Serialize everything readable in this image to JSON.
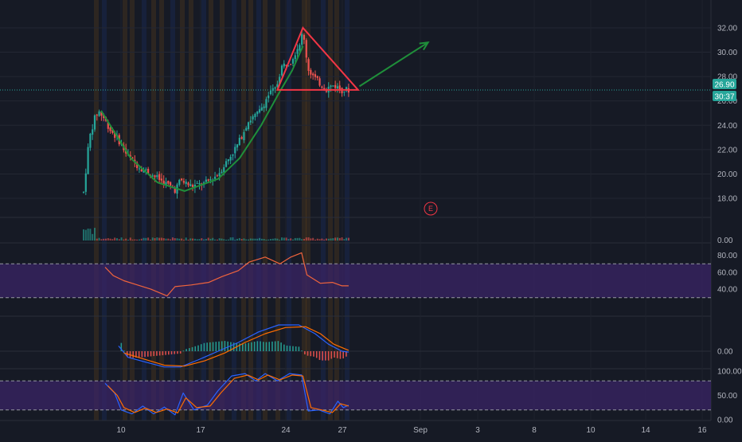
{
  "colors": {
    "background": "#161a25",
    "grid": "#232733",
    "axis_text": "#b2b5be",
    "up": "#26a69a",
    "down": "#ef5350",
    "price_line": "#26a69a",
    "band": "#3a2466",
    "rsi": "#f0643c",
    "macd": "#2962ff",
    "signal": "#ff6d00",
    "stoch_k": "#2962ff",
    "stoch_d": "#ff6d00",
    "cup": "#1f8f3a",
    "triangle": "#f23645",
    "arrow": "#1f8f3a",
    "earnings": "#f23645"
  },
  "price_axis": {
    "labels": [
      "32.00",
      "30.00",
      "28.00",
      "26.00",
      "24.00",
      "22.00",
      "20.00",
      "18.00"
    ]
  },
  "volume_axis": {
    "labels": [
      "0.00"
    ]
  },
  "rsi_axis": {
    "labels": [
      "80.00",
      "60.00",
      "40.00"
    ]
  },
  "macd_axis": {
    "labels": [
      "0.00"
    ]
  },
  "stoch_axis": {
    "labels": [
      "100.00",
      "50.00",
      "0.00"
    ]
  },
  "time_axis": {
    "labels": [
      "10",
      "17",
      "24",
      "27",
      "Sep",
      "3",
      "8",
      "10",
      "14",
      "16"
    ]
  },
  "last_price": {
    "value": "26.90",
    "countdown": "30:37"
  },
  "earnings_marker": {
    "text": "E"
  },
  "chart_data": {
    "type": "candlestick",
    "price_ylim": [
      16.5,
      33.5
    ],
    "last_price": 26.9,
    "path": [
      {
        "d": 0,
        "p": 18.5
      },
      {
        "d": 0.4,
        "p": 22.8
      },
      {
        "d": 0.8,
        "p": 24.5
      },
      {
        "d": 1.1,
        "p": 25.2
      },
      {
        "d": 1.5,
        "p": 24.6
      },
      {
        "d": 2,
        "p": 23.6
      },
      {
        "d": 2.6,
        "p": 22.8
      },
      {
        "d": 3.2,
        "p": 21.6
      },
      {
        "d": 4,
        "p": 20.7
      },
      {
        "d": 5,
        "p": 20.0
      },
      {
        "d": 6,
        "p": 19.3
      },
      {
        "d": 6.8,
        "p": 18.7
      },
      {
        "d": 7.2,
        "p": 19.5
      },
      {
        "d": 8,
        "p": 19.0
      },
      {
        "d": 9,
        "p": 19.2
      },
      {
        "d": 10,
        "p": 20.0
      },
      {
        "d": 10.8,
        "p": 21.3
      },
      {
        "d": 11.5,
        "p": 22.5
      },
      {
        "d": 12.2,
        "p": 24.3
      },
      {
        "d": 13,
        "p": 25.0
      },
      {
        "d": 13.8,
        "p": 26.6
      },
      {
        "d": 14.3,
        "p": 27.0
      },
      {
        "d": 14.7,
        "p": 28.8
      },
      {
        "d": 15.4,
        "p": 29.3
      },
      {
        "d": 16,
        "p": 30.6
      },
      {
        "d": 16.3,
        "p": 31.6
      },
      {
        "d": 16.7,
        "p": 28.6
      },
      {
        "d": 17.3,
        "p": 27.7
      },
      {
        "d": 18,
        "p": 27.0
      },
      {
        "d": 18.6,
        "p": 27.3
      },
      {
        "d": 19.2,
        "p": 26.9
      },
      {
        "d": 19.7,
        "p": 26.9
      }
    ],
    "rsi_path": [
      {
        "d": 1.6,
        "p": 66
      },
      {
        "d": 2.2,
        "p": 56
      },
      {
        "d": 3,
        "p": 50
      },
      {
        "d": 4,
        "p": 45
      },
      {
        "d": 5,
        "p": 40
      },
      {
        "d": 6.2,
        "p": 32
      },
      {
        "d": 6.8,
        "p": 43
      },
      {
        "d": 8,
        "p": 45
      },
      {
        "d": 9.3,
        "p": 48
      },
      {
        "d": 10.3,
        "p": 55
      },
      {
        "d": 11.5,
        "p": 62
      },
      {
        "d": 12.3,
        "p": 72
      },
      {
        "d": 13.5,
        "p": 78
      },
      {
        "d": 14.6,
        "p": 70
      },
      {
        "d": 15.4,
        "p": 78
      },
      {
        "d": 16.2,
        "p": 83
      },
      {
        "d": 16.6,
        "p": 57
      },
      {
        "d": 17.6,
        "p": 47
      },
      {
        "d": 18.5,
        "p": 48
      },
      {
        "d": 19.2,
        "p": 44
      },
      {
        "d": 19.7,
        "p": 44
      }
    ],
    "rsi_bands": [
      30,
      70
    ],
    "macd_path": [
      {
        "d": 2.6,
        "p": 0.3
      },
      {
        "d": 3.3,
        "p": -0.35
      },
      {
        "d": 4.5,
        "p": -0.6
      },
      {
        "d": 6,
        "p": -0.9
      },
      {
        "d": 7.2,
        "p": -0.9
      },
      {
        "d": 8.5,
        "p": -0.5
      },
      {
        "d": 10,
        "p": 0.0
      },
      {
        "d": 11.5,
        "p": 0.5
      },
      {
        "d": 13,
        "p": 1.1
      },
      {
        "d": 14.5,
        "p": 1.5
      },
      {
        "d": 16,
        "p": 1.5
      },
      {
        "d": 17.2,
        "p": 1.0
      },
      {
        "d": 18.2,
        "p": 0.4
      },
      {
        "d": 19.2,
        "p": 0.0
      },
      {
        "d": 19.7,
        "p": -0.05
      }
    ],
    "signal_path": [
      {
        "d": 3.0,
        "p": -0.1
      },
      {
        "d": 4.5,
        "p": -0.45
      },
      {
        "d": 6,
        "p": -0.8
      },
      {
        "d": 7.5,
        "p": -0.85
      },
      {
        "d": 9,
        "p": -0.55
      },
      {
        "d": 10.5,
        "p": -0.1
      },
      {
        "d": 12,
        "p": 0.5
      },
      {
        "d": 13.5,
        "p": 1.0
      },
      {
        "d": 15,
        "p": 1.35
      },
      {
        "d": 16.5,
        "p": 1.4
      },
      {
        "d": 17.6,
        "p": 1.0
      },
      {
        "d": 18.6,
        "p": 0.4
      },
      {
        "d": 19.7,
        "p": 0.05
      }
    ],
    "stoch_k_path": [
      {
        "d": 1.6,
        "p": 75
      },
      {
        "d": 2.3,
        "p": 55
      },
      {
        "d": 2.8,
        "p": 20
      },
      {
        "d": 3.6,
        "p": 12
      },
      {
        "d": 4.4,
        "p": 28
      },
      {
        "d": 5.2,
        "p": 12
      },
      {
        "d": 6,
        "p": 26
      },
      {
        "d": 6.8,
        "p": 10
      },
      {
        "d": 7.4,
        "p": 55
      },
      {
        "d": 8.2,
        "p": 20
      },
      {
        "d": 9.2,
        "p": 30
      },
      {
        "d": 10,
        "p": 60
      },
      {
        "d": 11,
        "p": 90
      },
      {
        "d": 12,
        "p": 95
      },
      {
        "d": 12.8,
        "p": 80
      },
      {
        "d": 13.5,
        "p": 95
      },
      {
        "d": 14.4,
        "p": 80
      },
      {
        "d": 15.3,
        "p": 95
      },
      {
        "d": 16.2,
        "p": 92
      },
      {
        "d": 16.7,
        "p": 18
      },
      {
        "d": 17.5,
        "p": 20
      },
      {
        "d": 18.3,
        "p": 12
      },
      {
        "d": 18.9,
        "p": 38
      },
      {
        "d": 19.3,
        "p": 25
      },
      {
        "d": 19.7,
        "p": 30
      }
    ],
    "stoch_d_path": [
      {
        "d": 1.8,
        "p": 70
      },
      {
        "d": 2.5,
        "p": 50
      },
      {
        "d": 3.0,
        "p": 25
      },
      {
        "d": 3.8,
        "p": 15
      },
      {
        "d": 4.6,
        "p": 24
      },
      {
        "d": 5.4,
        "p": 15
      },
      {
        "d": 6.2,
        "p": 22
      },
      {
        "d": 7.0,
        "p": 14
      },
      {
        "d": 7.6,
        "p": 45
      },
      {
        "d": 8.4,
        "p": 25
      },
      {
        "d": 9.4,
        "p": 28
      },
      {
        "d": 10.2,
        "p": 55
      },
      {
        "d": 11.2,
        "p": 85
      },
      {
        "d": 12.2,
        "p": 92
      },
      {
        "d": 13,
        "p": 82
      },
      {
        "d": 13.7,
        "p": 92
      },
      {
        "d": 14.6,
        "p": 82
      },
      {
        "d": 15.5,
        "p": 92
      },
      {
        "d": 16.3,
        "p": 90
      },
      {
        "d": 16.9,
        "p": 25
      },
      {
        "d": 17.7,
        "p": 20
      },
      {
        "d": 18.5,
        "p": 15
      },
      {
        "d": 19.1,
        "p": 33
      },
      {
        "d": 19.7,
        "p": 28
      }
    ],
    "stoch_bands": [
      20,
      80
    ],
    "cup_path": [
      {
        "d": 1.3,
        "p": 25.2
      },
      {
        "d": 3.5,
        "p": 21.3
      },
      {
        "d": 5.5,
        "p": 19.3
      },
      {
        "d": 7.5,
        "p": 18.6
      },
      {
        "d": 10,
        "p": 19.6
      },
      {
        "d": 11.6,
        "p": 21.3
      },
      {
        "d": 13.2,
        "p": 24.0
      },
      {
        "d": 14.5,
        "p": 26.6
      },
      {
        "d": 15.5,
        "p": 28.5
      },
      {
        "d": 16.3,
        "p": 30.5
      }
    ],
    "triangle": [
      {
        "d": 16.3,
        "p": 32.0
      },
      {
        "d": 20.4,
        "p": 26.9
      },
      {
        "d": 14.4,
        "p": 26.9
      }
    ],
    "breakout_arrow": [
      {
        "d": 20.5,
        "p": 27.2
      },
      {
        "d": 25.6,
        "p": 30.8
      }
    ]
  }
}
